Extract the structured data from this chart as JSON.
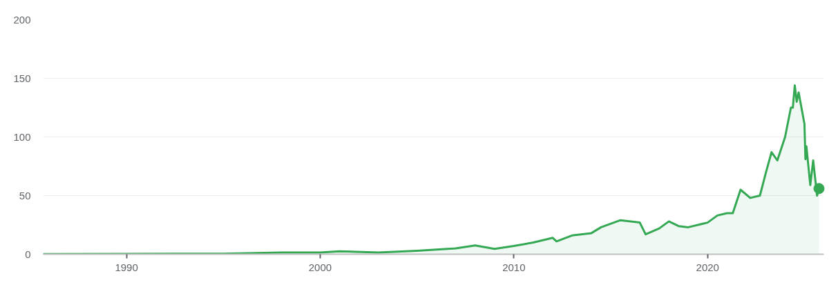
{
  "chart_data": {
    "type": "area",
    "xlim": [
      1985.7,
      2026.0
    ],
    "xticks": [
      1990,
      2000,
      2010,
      2020
    ],
    "ylim": [
      0,
      200
    ],
    "yticks": [
      0,
      50,
      100,
      150,
      200
    ],
    "grid": "y",
    "series": [
      {
        "color": "#34a853",
        "x": [
          1985.7,
          1990,
          1995,
          1998,
          2000,
          2001,
          2003,
          2005,
          2007,
          2008,
          2009,
          2010,
          2011,
          2012,
          2012.2,
          2013,
          2014,
          2014.5,
          2015.5,
          2016.5,
          2016.8,
          2017.5,
          2018,
          2018.5,
          2019,
          2020,
          2020.5,
          2021,
          2021.3,
          2021.7,
          2022.2,
          2022.7,
          2023.0,
          2023.3,
          2023.6,
          2024.0,
          2024.3,
          2024.4,
          2024.5,
          2024.6,
          2024.7,
          2025.0,
          2025.05,
          2025.1,
          2025.3,
          2025.45,
          2025.65,
          2025.75
        ],
        "values": [
          0.2,
          0.3,
          0.5,
          1.5,
          1.5,
          2.5,
          1.5,
          3,
          5,
          7.5,
          4.5,
          7,
          10,
          14,
          11,
          16,
          18,
          23,
          29,
          27,
          17,
          22,
          28,
          24,
          23,
          27,
          33,
          35,
          35,
          55,
          48,
          50,
          69,
          87,
          80,
          100,
          125,
          125,
          144,
          130,
          138,
          111,
          81,
          92,
          59,
          80,
          50,
          56
        ]
      },
      {
        "type": "scatter",
        "color": "#34a853",
        "marker": "circle",
        "x": [
          2025.75
        ],
        "values": [
          56
        ]
      }
    ]
  }
}
